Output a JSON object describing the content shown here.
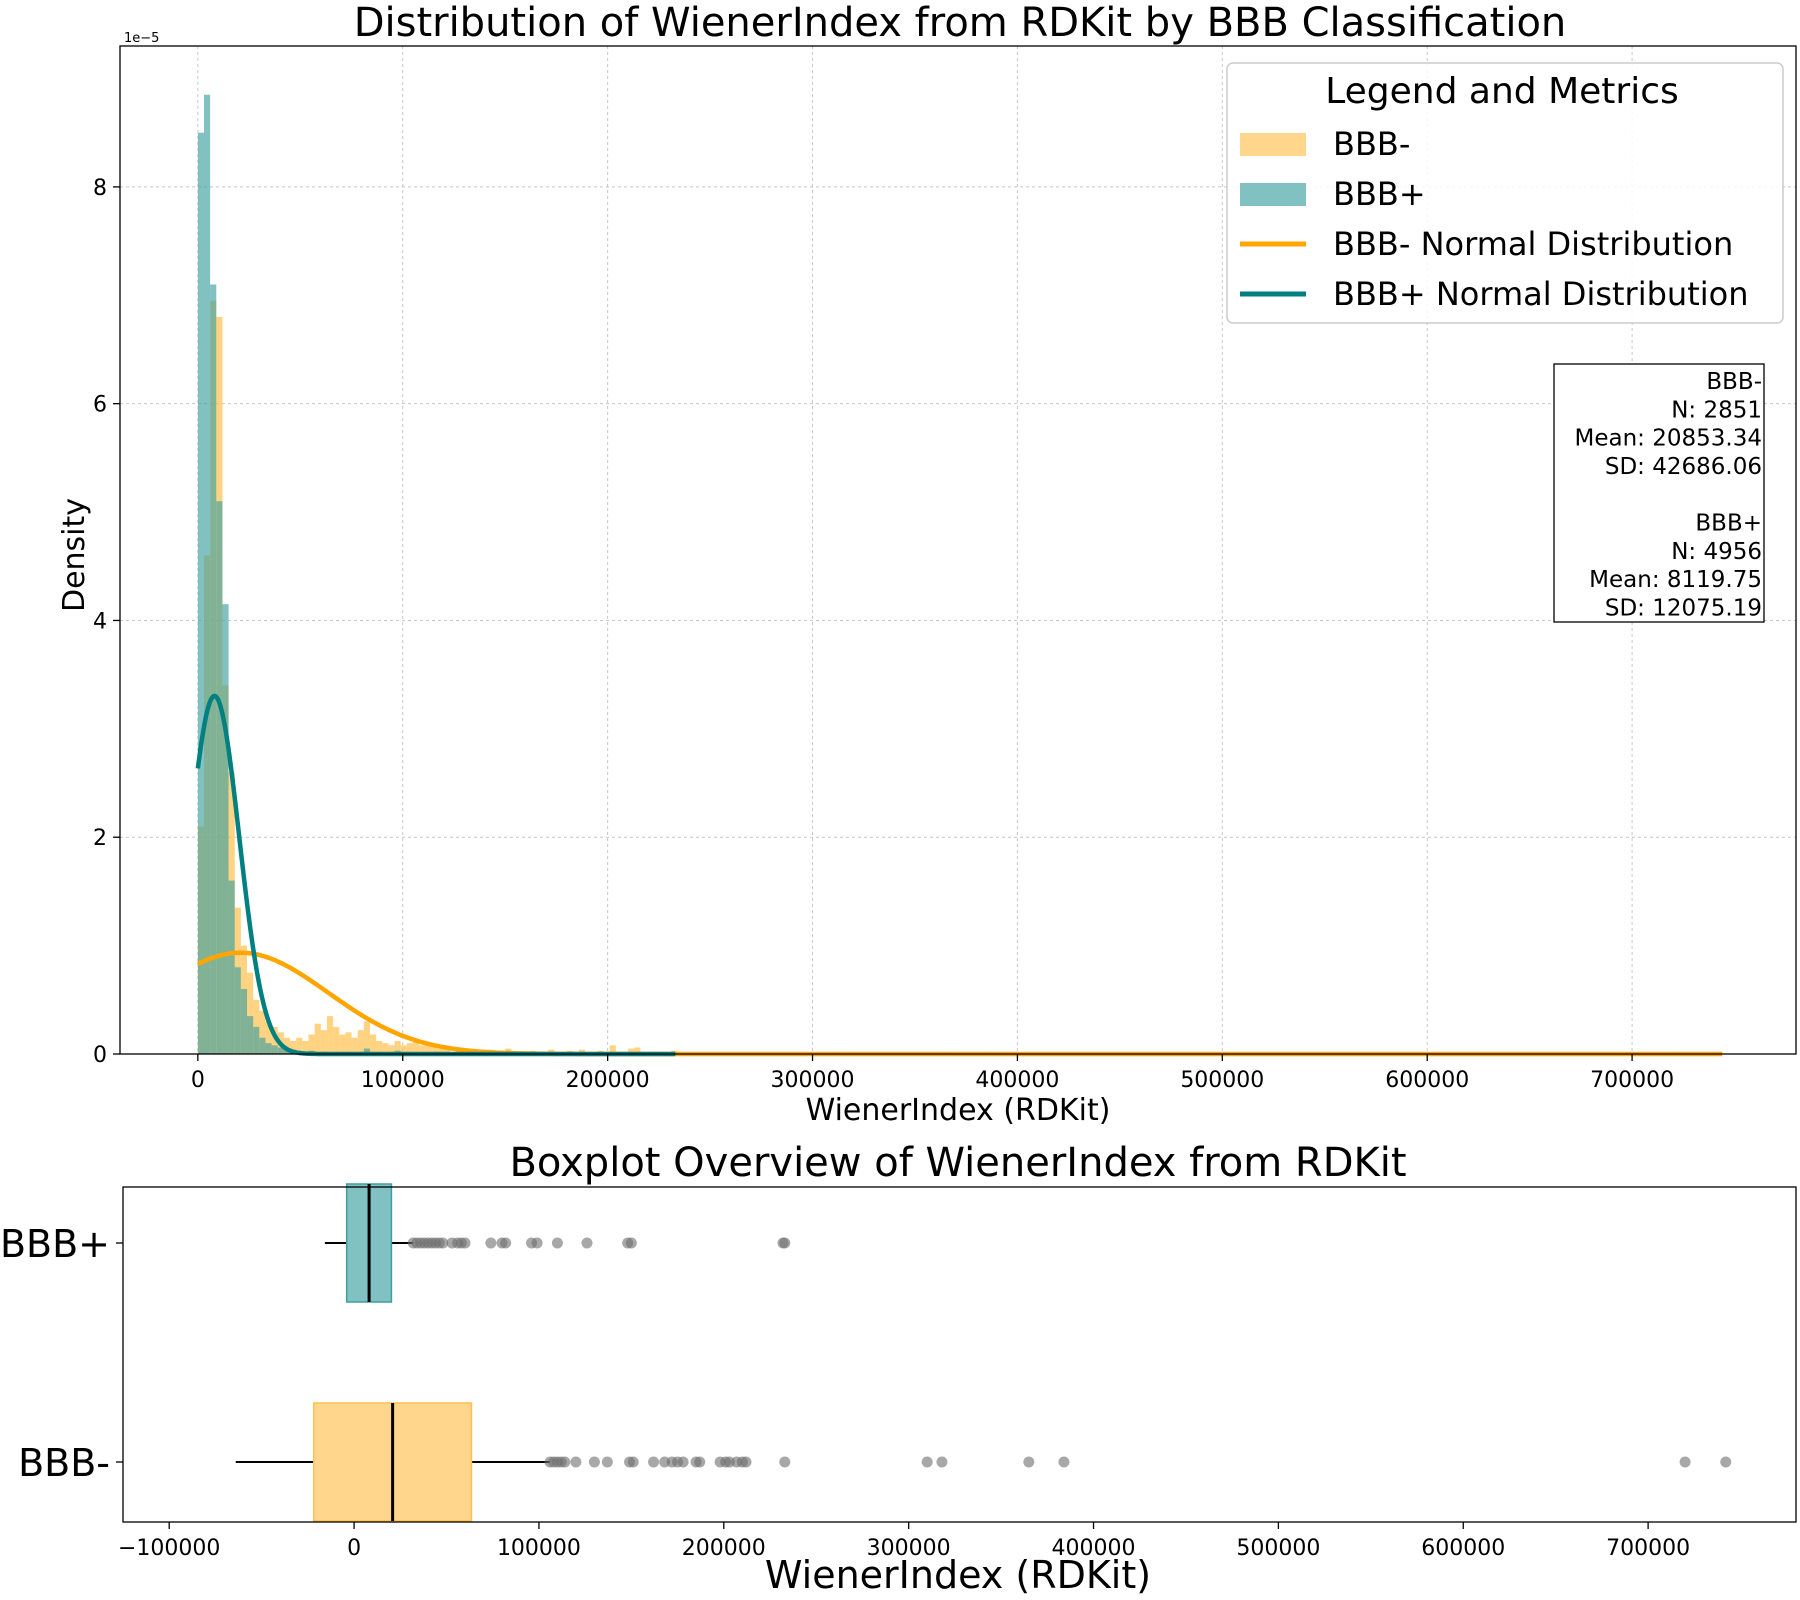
{
  "chart_data": [
    {
      "type": "histogram",
      "title": "Distribution of WienerIndex from RDKit by BBB Classification",
      "xlabel": "WienerIndex (RDKit)",
      "ylabel": "Density",
      "y_scale_label": "1e−5",
      "xlim": [
        -38000,
        780000
      ],
      "ylim": [
        0,
        9.3
      ],
      "x_ticks": [
        0,
        100000,
        200000,
        300000,
        400000,
        500000,
        600000,
        700000
      ],
      "x_tick_labels": [
        "0",
        "100000",
        "200000",
        "300000",
        "400000",
        "500000",
        "600000",
        "700000"
      ],
      "y_ticks": [
        0,
        2,
        4,
        6,
        8
      ],
      "y_tick_labels": [
        "0",
        "2",
        "4",
        "6",
        "8"
      ],
      "grid": true,
      "legend": {
        "title": "Legend and Metrics",
        "position": "top-right",
        "entries": [
          {
            "label": "BBB-",
            "kind": "patch",
            "color": "#ffc04d"
          },
          {
            "label": "BBB+",
            "kind": "patch",
            "color": "#3f9f9f"
          },
          {
            "label": "BBB- Normal Distribution",
            "kind": "line",
            "color": "#ffa500"
          },
          {
            "label": "BBB+ Normal Distribution",
            "kind": "line",
            "color": "#008080"
          }
        ]
      },
      "stats_box": [
        "BBB-",
        "N: 2851",
        "Mean: 20853.34",
        "SD: 42686.06",
        "",
        "BBB+",
        "N: 4956",
        "Mean: 8119.75",
        "SD: 12075.19"
      ],
      "series": [
        {
          "name": "BBB-",
          "color": "#ffc04d",
          "opacity": 0.7,
          "bin_width": 3000,
          "bins": [
            [
              0,
              2.1
            ],
            [
              3000,
              4.6
            ],
            [
              6000,
              6.95
            ],
            [
              9000,
              6.8
            ],
            [
              12000,
              3.4
            ],
            [
              15000,
              2.6
            ],
            [
              18000,
              1.35
            ],
            [
              21000,
              1.0
            ],
            [
              24000,
              0.75
            ],
            [
              27000,
              0.5
            ],
            [
              30000,
              0.4
            ],
            [
              33000,
              0.3
            ],
            [
              36000,
              0.25
            ],
            [
              39000,
              0.2
            ],
            [
              42000,
              0.15
            ],
            [
              45000,
              0.12
            ],
            [
              48000,
              0.15
            ],
            [
              51000,
              0.12
            ],
            [
              54000,
              0.18
            ],
            [
              57000,
              0.28
            ],
            [
              60000,
              0.22
            ],
            [
              63000,
              0.35
            ],
            [
              66000,
              0.25
            ],
            [
              69000,
              0.18
            ],
            [
              72000,
              0.2
            ],
            [
              75000,
              0.15
            ],
            [
              78000,
              0.22
            ],
            [
              81000,
              0.3
            ],
            [
              84000,
              0.18
            ],
            [
              87000,
              0.12
            ],
            [
              90000,
              0.1
            ],
            [
              93000,
              0.08
            ],
            [
              96000,
              0.12
            ],
            [
              99000,
              0.08
            ],
            [
              102000,
              0.1
            ],
            [
              105000,
              0.12
            ],
            [
              108000,
              0.08
            ],
            [
              111000,
              0.1
            ],
            [
              114000,
              0.06
            ],
            [
              117000,
              0.05
            ],
            [
              120000,
              0.05
            ],
            [
              126000,
              0.04
            ],
            [
              132000,
              0.03
            ],
            [
              141000,
              0.04
            ],
            [
              150000,
              0.05
            ],
            [
              162000,
              0.03
            ],
            [
              171000,
              0.04
            ],
            [
              180000,
              0.03
            ],
            [
              186000,
              0.04
            ],
            [
              195000,
              0.03
            ],
            [
              201000,
              0.08
            ],
            [
              210000,
              0.05
            ],
            [
              213000,
              0.06
            ],
            [
              231000,
              0.03
            ],
            [
              309000,
              0.02
            ],
            [
              318000,
              0.02
            ],
            [
              363000,
              0.02
            ],
            [
              384000,
              0.02
            ],
            [
              720000,
              0.02
            ],
            [
              741000,
              0.02
            ]
          ]
        },
        {
          "name": "BBB+",
          "color": "#3f9f9f",
          "opacity": 0.65,
          "bin_width": 3000,
          "bins": [
            [
              0,
              8.5
            ],
            [
              3000,
              8.85
            ],
            [
              6000,
              7.1
            ],
            [
              9000,
              5.1
            ],
            [
              12000,
              4.15
            ],
            [
              15000,
              1.6
            ],
            [
              18000,
              0.8
            ],
            [
              21000,
              0.6
            ],
            [
              24000,
              0.35
            ],
            [
              27000,
              0.25
            ],
            [
              30000,
              0.15
            ],
            [
              33000,
              0.1
            ],
            [
              36000,
              0.08
            ],
            [
              39000,
              0.06
            ],
            [
              42000,
              0.05
            ],
            [
              45000,
              0.04
            ],
            [
              48000,
              0.03
            ],
            [
              54000,
              0.03
            ],
            [
              60000,
              0.02
            ],
            [
              81000,
              0.05
            ],
            [
              96000,
              0.03
            ],
            [
              150000,
              0.03
            ],
            [
              231000,
              0.02
            ]
          ]
        }
      ],
      "normal_curves": [
        {
          "name": "BBB- Normal Distribution",
          "mean": 20853.34,
          "sd": 42686.06,
          "x_range": [
            0,
            744000
          ],
          "color": "#ffa500"
        },
        {
          "name": "BBB+ Normal Distribution",
          "mean": 8119.75,
          "sd": 12075.19,
          "x_range": [
            0,
            233000
          ],
          "color": "#008080"
        }
      ]
    },
    {
      "type": "boxplot",
      "title": "Boxplot Overview of WienerIndex from RDKit",
      "xlabel": "WienerIndex (RDKit)",
      "xlim": [
        -125000,
        780000
      ],
      "x_ticks": [
        -100000,
        0,
        100000,
        200000,
        300000,
        400000,
        500000,
        600000,
        700000
      ],
      "x_tick_labels": [
        "−100000",
        "0",
        "100000",
        "200000",
        "300000",
        "400000",
        "500000",
        "600000",
        "700000"
      ],
      "categories": [
        "BBB+",
        "BBB-"
      ],
      "boxes": [
        {
          "name": "BBB+",
          "color": "#3f9f9f",
          "whisker_low": -15800,
          "q1": -4000,
          "median": 8119.75,
          "q3": 20200,
          "whisker_high": 32000,
          "outliers": [
            32000,
            34000,
            36000,
            38000,
            40000,
            42000,
            44000,
            46000,
            48000,
            53000,
            56000,
            58000,
            60000,
            74000,
            80000,
            82000,
            96000,
            99000,
            110000,
            126000,
            148000,
            150000,
            232000,
            233000
          ]
        },
        {
          "name": "BBB-",
          "color": "#ffc04d",
          "whisker_low": -64000,
          "q1": -21800,
          "median": 20853.34,
          "q3": 63500,
          "whisker_high": 106000,
          "outliers": [
            106000,
            108000,
            110000,
            112000,
            114000,
            120000,
            130000,
            137000,
            149000,
            151000,
            162000,
            168000,
            172000,
            175000,
            178000,
            185000,
            187000,
            198000,
            201000,
            203000,
            207000,
            210000,
            212000,
            233000,
            310000,
            318000,
            365000,
            384000,
            720000,
            742000
          ]
        }
      ]
    }
  ]
}
